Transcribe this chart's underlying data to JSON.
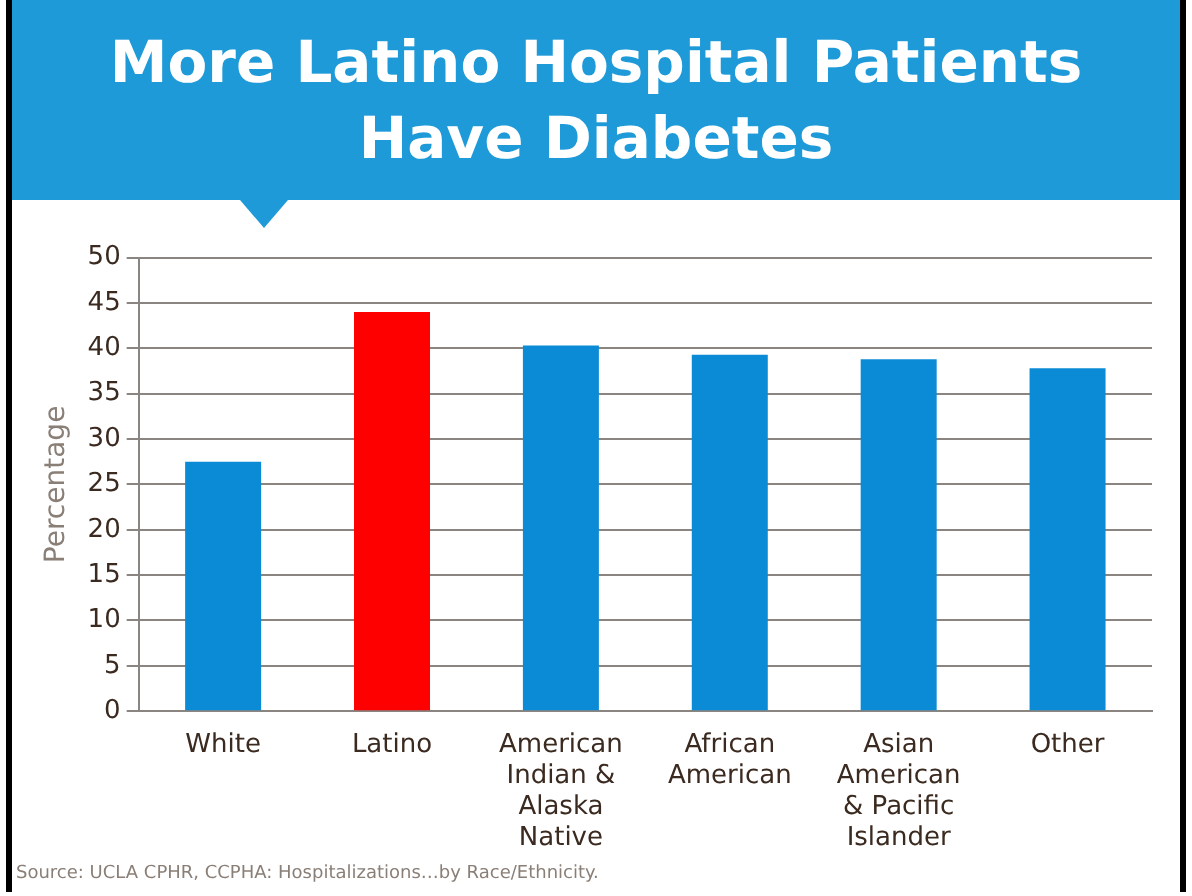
{
  "chart_data": {
    "type": "bar",
    "title": "More Latino Hospital Patients Have Diabetes",
    "ylabel": "Percentage",
    "categories": [
      "White",
      "Latino",
      "American Indian & Alaska Native",
      "African American",
      "Asian American & Pacific Islander",
      "Other"
    ],
    "values": [
      27.5,
      44,
      40.3,
      39.3,
      38.8,
      37.8
    ],
    "colors": [
      "#0b8bd6",
      "#ff0000",
      "#0b8bd6",
      "#0b8bd6",
      "#0b8bd6",
      "#0b8bd6"
    ],
    "ylim": [
      0,
      50
    ],
    "yticks": [
      0,
      5,
      10,
      15,
      20,
      25,
      30,
      35,
      40,
      45,
      50
    ],
    "grid": "y",
    "legend": false,
    "annotations": [
      "Source: UCLA CPHR, CCPHA: Hospitalizations…by Race/Ethnicity."
    ]
  }
}
